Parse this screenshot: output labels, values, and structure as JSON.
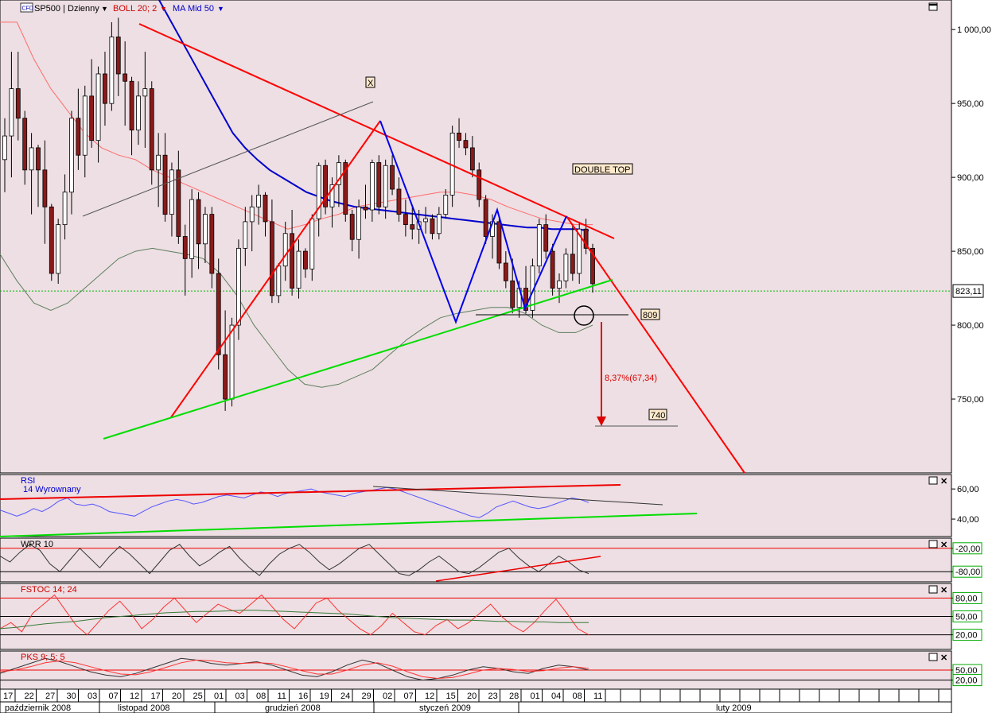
{
  "header": {
    "symbol_badge": "CFD",
    "symbol": "SP500 | Dzienny",
    "indicator1": "BOLL 20; 2",
    "indicator2": "MA Mid  50"
  },
  "colors": {
    "bg": "#eddfe3",
    "up_candle": "#ffffff",
    "down_candle": "#8b1a1a",
    "boll": "#ff6b6b",
    "boll_lower": "#5f7f5f",
    "ma": "#0000cc",
    "red_line": "#ff0000",
    "green_line": "#00dd00"
  },
  "chart_data": [
    {
      "type": "candlestick",
      "title": "SP500 | Dzienny",
      "ylim": [
        700,
        1020
      ],
      "y_ticks": [
        "1 000,00",
        "950,00",
        "900,00",
        "850,00",
        "800,00",
        "750,00"
      ],
      "y_tick_values": [
        1000,
        950,
        900,
        850,
        800,
        750
      ],
      "current_price_label": "823,11",
      "current_price": 823.11,
      "x_day_labels": [
        "17",
        "22",
        "27",
        "30",
        "03",
        "07",
        "12",
        "17",
        "20",
        "25",
        "01",
        "03",
        "08",
        "11",
        "16",
        "19",
        "24",
        "29",
        "02",
        "07",
        "12",
        "15",
        "20",
        "23",
        "28",
        "01",
        "04",
        "08",
        "11"
      ],
      "x_month_labels": [
        "październik 2008",
        "listopad 2008",
        "grudzień 2008",
        "styczeń 2009",
        "luty 2009"
      ],
      "annotations": {
        "double_top": "DOUBLE TOP",
        "neckline": "809",
        "target": "740",
        "drop": "8,37%(67,34)",
        "marker_x": "X"
      },
      "candles": [
        [
          912,
          940,
          890,
          928
        ],
        [
          928,
          985,
          900,
          960
        ],
        [
          960,
          985,
          925,
          940
        ],
        [
          940,
          945,
          895,
          905
        ],
        [
          905,
          930,
          875,
          920
        ],
        [
          920,
          922,
          880,
          905
        ],
        [
          905,
          925,
          855,
          880
        ],
        [
          880,
          882,
          830,
          835
        ],
        [
          835,
          872,
          828,
          868
        ],
        [
          868,
          902,
          858,
          890
        ],
        [
          890,
          945,
          875,
          940
        ],
        [
          940,
          960,
          905,
          915
        ],
        [
          915,
          962,
          900,
          955
        ],
        [
          955,
          980,
          920,
          925
        ],
        [
          925,
          975,
          910,
          970
        ],
        [
          970,
          985,
          935,
          950
        ],
        [
          950,
          1005,
          945,
          995
        ],
        [
          995,
          1008,
          955,
          970
        ],
        [
          970,
          992,
          935,
          965
        ],
        [
          965,
          968,
          915,
          932
        ],
        [
          932,
          965,
          922,
          955
        ],
        [
          955,
          985,
          920,
          960
        ],
        [
          960,
          965,
          895,
          905
        ],
        [
          905,
          930,
          880,
          915
        ],
        [
          915,
          930,
          870,
          875
        ],
        [
          875,
          910,
          860,
          905
        ],
        [
          905,
          918,
          855,
          860
        ],
        [
          860,
          868,
          820,
          845
        ],
        [
          845,
          892,
          832,
          885
        ],
        [
          885,
          890,
          838,
          855
        ],
        [
          855,
          880,
          842,
          875
        ],
        [
          875,
          880,
          825,
          835
        ],
        [
          835,
          845,
          770,
          780
        ],
        [
          780,
          810,
          742,
          750
        ],
        [
          750,
          805,
          745,
          800
        ],
        [
          800,
          858,
          790,
          852
        ],
        [
          852,
          880,
          840,
          870
        ],
        [
          870,
          888,
          850,
          880
        ],
        [
          880,
          895,
          868,
          888
        ],
        [
          888,
          890,
          860,
          870
        ],
        [
          870,
          885,
          815,
          820
        ],
        [
          820,
          842,
          815,
          840
        ],
        [
          840,
          870,
          830,
          862
        ],
        [
          862,
          878,
          820,
          825
        ],
        [
          825,
          858,
          818,
          850
        ],
        [
          850,
          852,
          832,
          838
        ],
        [
          838,
          875,
          830,
          872
        ],
        [
          872,
          910,
          860,
          908
        ],
        [
          908,
          912,
          875,
          880
        ],
        [
          880,
          900,
          866,
          895
        ],
        [
          895,
          915,
          880,
          910
        ],
        [
          910,
          912,
          870,
          875
        ],
        [
          875,
          878,
          850,
          858
        ],
        [
          858,
          885,
          845,
          880
        ],
        [
          880,
          895,
          872,
          878
        ],
        [
          878,
          912,
          870,
          910
        ],
        [
          910,
          915,
          875,
          880
        ],
        [
          880,
          912,
          872,
          908
        ],
        [
          908,
          915,
          888,
          892
        ],
        [
          892,
          900,
          870,
          875
        ],
        [
          875,
          885,
          860,
          868
        ],
        [
          868,
          880,
          858,
          865
        ],
        [
          865,
          878,
          855,
          870
        ],
        [
          870,
          880,
          862,
          872
        ],
        [
          872,
          875,
          858,
          862
        ],
        [
          862,
          880,
          858,
          875
        ],
        [
          875,
          892,
          872,
          888
        ],
        [
          888,
          935,
          880,
          930
        ],
        [
          930,
          940,
          920,
          925
        ],
        [
          925,
          930,
          915,
          920
        ],
        [
          920,
          928,
          900,
          905
        ],
        [
          905,
          910,
          880,
          885
        ],
        [
          885,
          888,
          855,
          860
        ],
        [
          860,
          875,
          845,
          870
        ],
        [
          870,
          872,
          838,
          842
        ],
        [
          842,
          850,
          825,
          830
        ],
        [
          830,
          845,
          808,
          812
        ],
        [
          812,
          830,
          805,
          825
        ],
        [
          825,
          840,
          808,
          810
        ],
        [
          810,
          845,
          805,
          840
        ],
        [
          840,
          872,
          835,
          868
        ],
        [
          868,
          875,
          845,
          850
        ],
        [
          850,
          855,
          820,
          825
        ],
        [
          825,
          835,
          815,
          830
        ],
        [
          830,
          852,
          825,
          848
        ],
        [
          848,
          868,
          830,
          835
        ],
        [
          835,
          870,
          828,
          865
        ],
        [
          865,
          872,
          848,
          852
        ],
        [
          852,
          855,
          822,
          828
        ]
      ],
      "ma50": [
        1020,
        1005,
        990,
        975,
        960,
        945,
        930,
        920,
        912,
        905,
        900,
        895,
        890,
        887,
        884,
        882,
        880,
        879,
        878,
        877,
        876,
        875,
        874,
        873,
        872,
        871,
        870,
        869,
        868,
        867,
        866,
        866,
        865,
        865,
        865,
        864
      ],
      "boll_upper": [
        1005,
        1005,
        980,
        960,
        945,
        930,
        920,
        915,
        912,
        905,
        900,
        895,
        890,
        885,
        880,
        875,
        870,
        865,
        868,
        872,
        875,
        880,
        882,
        884,
        886,
        888,
        890,
        890,
        888,
        885,
        880,
        876,
        872,
        870,
        868,
        868
      ],
      "boll_lower": [
        848,
        830,
        815,
        810,
        815,
        825,
        835,
        845,
        850,
        852,
        850,
        848,
        845,
        835,
        820,
        800,
        785,
        770,
        760,
        758,
        760,
        765,
        770,
        780,
        790,
        798,
        805,
        808,
        810,
        812,
        812,
        808,
        800,
        795,
        795,
        800
      ]
    },
    {
      "type": "line",
      "title": "RSI",
      "subtitle": "14 Wyrownany",
      "ylim": [
        30,
        68
      ],
      "y_ticks": [
        "60,00",
        "40,00"
      ],
      "y_tick_values": [
        60,
        40
      ],
      "values": [
        46,
        44,
        42,
        44,
        47,
        45,
        48,
        52,
        54,
        50,
        49,
        50,
        48,
        45,
        44,
        43,
        42,
        45,
        48,
        50,
        52,
        53,
        52,
        50,
        51,
        53,
        55,
        56,
        55,
        54,
        56,
        58,
        57,
        55,
        57,
        58,
        59,
        60,
        58,
        57,
        56,
        55,
        57,
        58,
        59,
        60,
        61,
        60,
        58,
        56,
        54,
        52,
        50,
        48,
        46,
        44,
        42,
        41,
        44,
        48,
        50,
        52,
        50,
        48,
        47,
        48,
        50,
        52,
        54,
        53,
        51
      ]
    },
    {
      "type": "line",
      "title": "WPR 10",
      "ylim": [
        -100,
        0
      ],
      "y_ticks": [
        "-20,00",
        "-80,00"
      ],
      "y_tick_values": [
        -20,
        -80
      ],
      "values": [
        -40,
        -55,
        -30,
        -10,
        -25,
        -60,
        -80,
        -50,
        -20,
        -45,
        -70,
        -40,
        -15,
        -35,
        -60,
        -85,
        -55,
        -25,
        -10,
        -40,
        -65,
        -50,
        -30,
        -15,
        -45,
        -70,
        -90,
        -60,
        -35,
        -20,
        -10,
        -30,
        -55,
        -75,
        -60,
        -40,
        -20,
        -10,
        -35,
        -60,
        -85,
        -90,
        -75,
        -55,
        -40,
        -60,
        -80,
        -85,
        -70,
        -50,
        -30,
        -20,
        -45,
        -65,
        -80,
        -60,
        -40,
        -55,
        -75,
        -85
      ]
    },
    {
      "type": "line",
      "title": "FSTOC 14; 24",
      "ylim": [
        0,
        100
      ],
      "y_ticks": [
        "80,00",
        "50,00",
        "20,00"
      ],
      "y_tick_values": [
        80,
        50,
        20
      ],
      "values": [
        30,
        40,
        25,
        55,
        70,
        85,
        60,
        35,
        20,
        40,
        60,
        75,
        55,
        30,
        45,
        65,
        80,
        60,
        40,
        55,
        70,
        62,
        55,
        70,
        85,
        65,
        45,
        30,
        50,
        72,
        80,
        60,
        45,
        30,
        20,
        35,
        55,
        40,
        25,
        20,
        35,
        45,
        30,
        40,
        55,
        70,
        50,
        35,
        25,
        40,
        60,
        78,
        55,
        30,
        20
      ],
      "signal": [
        30,
        32,
        35,
        38,
        40,
        42,
        45,
        48,
        50,
        52,
        54,
        56,
        57,
        58,
        58,
        59,
        60,
        60,
        59,
        58,
        57,
        56,
        55,
        54,
        52,
        50,
        48,
        47,
        46,
        45,
        44,
        44,
        43,
        42,
        42,
        41,
        41,
        40,
        40,
        40
      ]
    },
    {
      "type": "line",
      "title": "PKS 9; 5; 5",
      "ylim": [
        0,
        100
      ],
      "y_ticks": [
        "50,00",
        "20,00"
      ],
      "y_tick_values": [
        50,
        20
      ],
      "values": [
        40,
        55,
        70,
        85,
        75,
        60,
        45,
        35,
        30,
        40,
        55,
        70,
        85,
        80,
        70,
        65,
        70,
        75,
        65,
        50,
        35,
        30,
        45,
        65,
        80,
        70,
        50,
        30,
        20,
        25,
        35,
        50,
        60,
        55,
        45,
        40,
        55,
        65,
        60,
        50
      ],
      "signal": [
        45,
        50,
        60,
        72,
        78,
        72,
        60,
        48,
        38,
        36,
        45,
        58,
        72,
        80,
        78,
        72,
        70,
        72,
        70,
        60,
        48,
        38,
        38,
        50,
        65,
        72,
        62,
        45,
        30,
        25,
        28,
        38,
        50,
        55,
        52,
        46,
        48,
        56,
        60,
        55
      ]
    }
  ]
}
